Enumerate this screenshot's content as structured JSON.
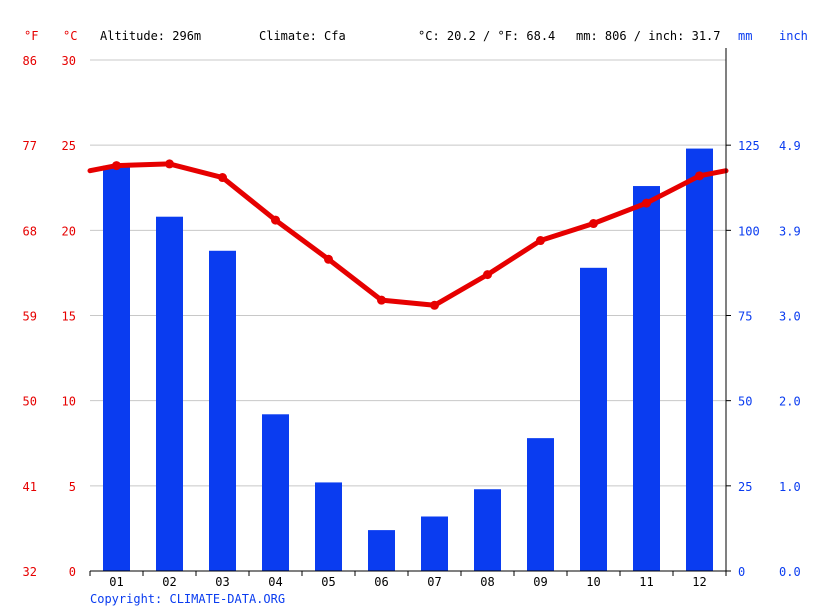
{
  "header": {
    "unit_f": "°F",
    "unit_c": "°C",
    "altitude": "Altitude: 296m",
    "climate": "Climate: Cfa",
    "temp_avg": "°C: 20.2 / °F: 68.4",
    "precip_avg": "mm: 806 / inch: 31.7",
    "unit_mm": "mm",
    "unit_inch": "inch"
  },
  "copyright": "Copyright: CLIMATE-DATA.ORG",
  "colors": {
    "temperature": "#e60000",
    "precipitation": "#0a3cf0",
    "grid": "#c8c8c8",
    "axis": "#000000"
  },
  "chart_data": {
    "type": "bar",
    "categories": [
      "01",
      "02",
      "03",
      "04",
      "05",
      "06",
      "07",
      "08",
      "09",
      "10",
      "11",
      "12"
    ],
    "series": [
      {
        "kind": "bar",
        "axis": "right",
        "values": [
          119,
          104,
          94,
          46,
          26,
          12,
          16,
          24,
          39,
          89,
          113,
          124
        ]
      },
      {
        "kind": "line",
        "axis": "left",
        "values": [
          23.8,
          23.9,
          23.1,
          20.6,
          18.3,
          15.9,
          15.6,
          17.4,
          19.4,
          20.4,
          21.6,
          23.2
        ],
        "edge_values": [
          23.5,
          23.5
        ]
      }
    ],
    "left_axis": {
      "ylim": [
        0,
        30
      ],
      "ticks_c": [
        "0",
        "5",
        "10",
        "15",
        "20",
        "25",
        "30"
      ],
      "ticks_f": [
        "32",
        "41",
        "50",
        "59",
        "68",
        "77",
        "86"
      ]
    },
    "right_axis": {
      "ylim": [
        0,
        150
      ],
      "ticks_mm": [
        "0",
        "25",
        "50",
        "75",
        "100",
        "125"
      ],
      "ticks_inch": [
        "0.0",
        "1.0",
        "2.0",
        "3.0",
        "3.9",
        "4.9"
      ]
    },
    "grid": true
  }
}
